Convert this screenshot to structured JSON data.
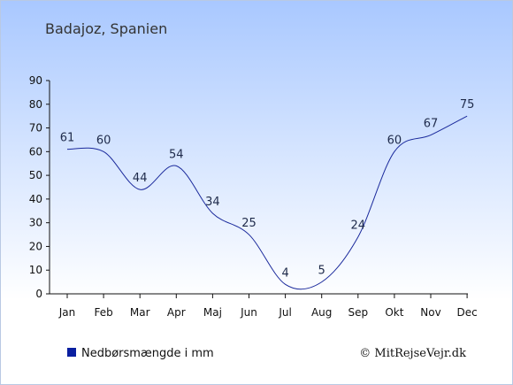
{
  "chart_data": {
    "type": "line",
    "title": "Badajoz, Spanien",
    "categories": [
      "Jan",
      "Feb",
      "Mar",
      "Apr",
      "Maj",
      "Jun",
      "Jul",
      "Aug",
      "Sep",
      "Okt",
      "Nov",
      "Dec"
    ],
    "series": [
      {
        "name": "Nedbørsmængde i mm",
        "values": [
          61,
          60,
          44,
          54,
          34,
          25,
          4,
          5,
          24,
          60,
          67,
          75
        ]
      }
    ],
    "yticks": [
      0,
      10,
      20,
      30,
      40,
      50,
      60,
      70,
      80,
      90
    ],
    "ylim": [
      0,
      90
    ],
    "line_color": "#1b2a9c",
    "legend_color": "#0a1fa0",
    "legend_position": "bottom-left",
    "grid": false
  },
  "footer": {
    "copyright": "© MitRejseVejr.dk"
  }
}
